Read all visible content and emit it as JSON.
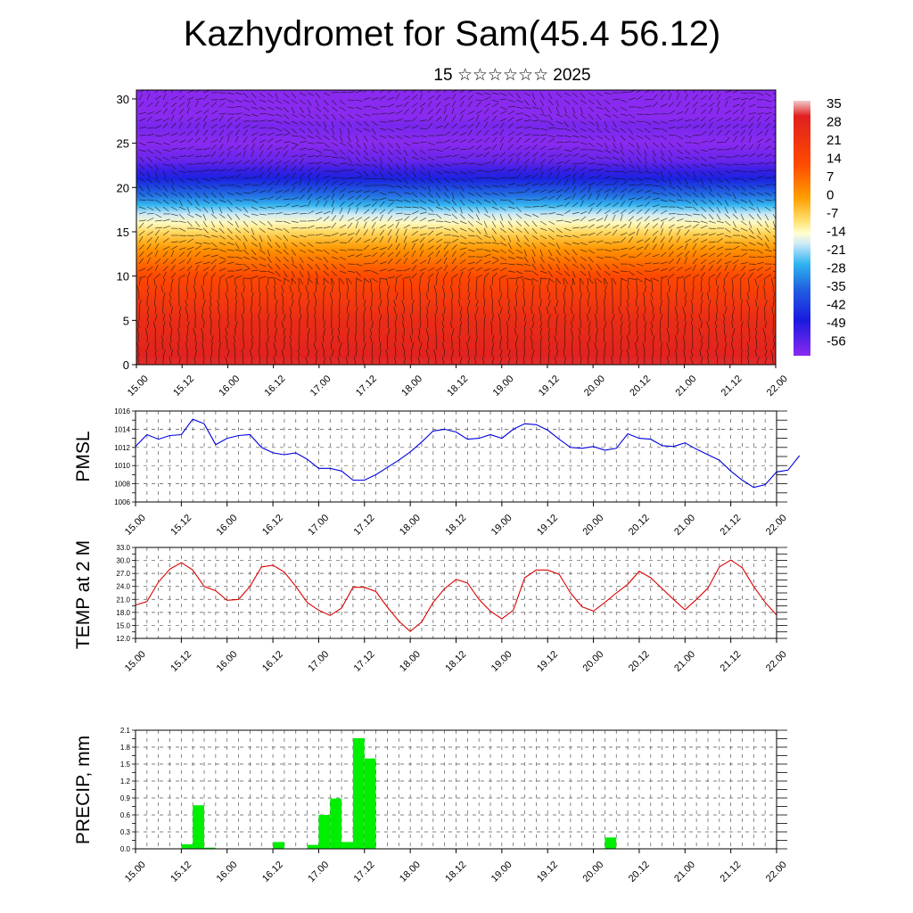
{
  "header": {
    "title": "Kazhydromet for Sam(45.4 56.12)",
    "subtitle": "15 ☆☆☆☆☆☆ 2025"
  },
  "colors": {
    "pmsl_line": "#0000dd",
    "temp_line": "#dd0000",
    "precip_bar": "#00ee00",
    "grid": "#555555"
  },
  "time_ticks": [
    "15.00",
    "15.12",
    "16.00",
    "16.12",
    "17.00",
    "17.12",
    "18.00",
    "18.12",
    "19.00",
    "19.12",
    "20.00",
    "20.12",
    "21.00",
    "21.12",
    "22.00"
  ],
  "chart_data": [
    {
      "type": "heatmap",
      "title": "",
      "ylabel": "",
      "ylim": [
        0,
        31
      ],
      "yticks": [
        "0",
        "5",
        "10",
        "15",
        "20",
        "25",
        "30"
      ],
      "colorbar_labels": [
        "35",
        "28",
        "21",
        "14",
        "7",
        "0",
        "-7",
        "-14",
        "-21",
        "-28",
        "-35",
        "-42",
        "-49",
        "-56"
      ],
      "overlay": "wind vectors",
      "temperature_profile": [
        {
          "height": 0,
          "value": 30
        },
        {
          "height": 5,
          "value": 24
        },
        {
          "height": 10,
          "value": 13
        },
        {
          "height": 13,
          "value": 2
        },
        {
          "height": 15,
          "value": -7
        },
        {
          "height": 17,
          "value": -16
        },
        {
          "height": 19,
          "value": -30
        },
        {
          "height": 21,
          "value": -42
        },
        {
          "height": 23,
          "value": -52
        },
        {
          "height": 25,
          "value": -56
        },
        {
          "height": 27,
          "value": -54
        },
        {
          "height": 29,
          "value": -60
        },
        {
          "height": 31,
          "value": -62
        }
      ]
    },
    {
      "type": "line",
      "title": "",
      "ylabel": "PMSL",
      "ylim": [
        1006,
        1016
      ],
      "yticks": [
        "1006",
        "1008",
        "1010",
        "1012",
        "1014",
        "1016"
      ],
      "x_hours_step": 3,
      "values": [
        1012.1,
        1013.4,
        1012.9,
        1013.3,
        1013.4,
        1015.1,
        1014.6,
        1012.3,
        1013.0,
        1013.3,
        1013.4,
        1012.0,
        1011.4,
        1011.2,
        1011.4,
        1010.7,
        1009.7,
        1009.7,
        1009.4,
        1008.4,
        1008.4,
        1009.0,
        1009.8,
        1010.6,
        1011.5,
        1012.6,
        1013.8,
        1014.0,
        1013.7,
        1012.9,
        1013.0,
        1013.4,
        1013.0,
        1014.0,
        1014.6,
        1014.5,
        1013.9,
        1012.9,
        1012.0,
        1011.9,
        1012.1,
        1011.7,
        1011.9,
        1013.5,
        1013.0,
        1012.9,
        1012.2,
        1012.1,
        1012.5,
        1011.8,
        1011.2,
        1010.6,
        1009.4,
        1008.4,
        1007.6,
        1007.9,
        1009.3,
        1009.5,
        1011.1
      ]
    },
    {
      "type": "line",
      "title": "",
      "ylabel": "TEMP at 2 M",
      "ylim": [
        12,
        33
      ],
      "yticks": [
        "12.0",
        "15.0",
        "18.0",
        "21.0",
        "24.0",
        "27.0",
        "30.0",
        "33.0"
      ],
      "x_hours_step": 3,
      "values": [
        19.7,
        20.5,
        25.0,
        28.0,
        29.5,
        27.8,
        24.0,
        23.0,
        20.8,
        21.0,
        24.0,
        28.5,
        28.9,
        27.3,
        24.0,
        20.3,
        18.5,
        17.3,
        19.0,
        23.8,
        23.8,
        22.8,
        19.2,
        16.0,
        13.6,
        15.8,
        20.3,
        23.5,
        25.6,
        24.8,
        21.0,
        18.3,
        16.5,
        18.5,
        26.0,
        27.8,
        27.8,
        26.8,
        22.5,
        19.3,
        18.3,
        20.3,
        22.5,
        24.5,
        27.5,
        26.0,
        23.5,
        21.0,
        18.6,
        21.0,
        23.6,
        28.5,
        30.1,
        28.3,
        24.0,
        20.3,
        17.4
      ]
    },
    {
      "type": "bar",
      "title": "",
      "ylabel": "PRECIP, mm",
      "ylim": [
        0,
        2.1
      ],
      "yticks": [
        "0.0",
        "0.3",
        "0.6",
        "0.9",
        "1.2",
        "1.5",
        "1.8",
        "2.1"
      ],
      "bins_hours": 3,
      "values": [
        0,
        0,
        0,
        0,
        0.08,
        0.77,
        0.02,
        0,
        0,
        0,
        0,
        0,
        0.12,
        0,
        0,
        0.07,
        0.6,
        0.89,
        0.12,
        1.96,
        1.6,
        0,
        0,
        0,
        0,
        0,
        0,
        0,
        0,
        0,
        0,
        0,
        0,
        0,
        0,
        0,
        0,
        0,
        0,
        0,
        0,
        0.2,
        0,
        0,
        0,
        0,
        0,
        0,
        0,
        0,
        0,
        0,
        0,
        0,
        0,
        0
      ]
    }
  ]
}
